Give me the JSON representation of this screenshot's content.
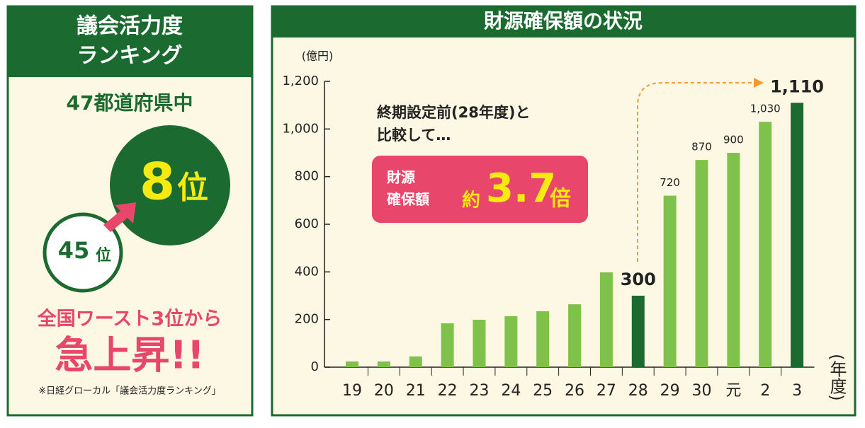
{
  "ranking_panel": {
    "title_lines": [
      "議会活力度",
      "ランキング"
    ],
    "subtitle": "47都道府県中",
    "current_rank": {
      "number": "8",
      "unit": "位"
    },
    "previous_rank": {
      "number": "45",
      "unit": "位"
    },
    "headline": "全国ワースト3位から",
    "headline_big": "急上昇!!",
    "footnote": "※日経グローカル「議会活力度ランキング」"
  },
  "chart_data": {
    "type": "bar",
    "title": "財源確保額の状況",
    "ylabel": "(億円)",
    "xlabel": "(年度)",
    "categories": [
      "19",
      "20",
      "21",
      "22",
      "23",
      "24",
      "25",
      "26",
      "27",
      "28",
      "29",
      "30",
      "元",
      "2",
      "3"
    ],
    "values": [
      24,
      24,
      45,
      184,
      199,
      214,
      235,
      264,
      398,
      300,
      720,
      870,
      900,
      1030,
      1110
    ],
    "value_labels": [
      null,
      null,
      null,
      null,
      null,
      null,
      null,
      null,
      null,
      "300",
      "720",
      "870",
      "900",
      "1,030",
      "1,110"
    ],
    "colors": [
      "#7fc24b",
      "#7fc24b",
      "#7fc24b",
      "#7fc24b",
      "#7fc24b",
      "#7fc24b",
      "#7fc24b",
      "#7fc24b",
      "#7fc24b",
      "#1b6b30",
      "#7fc24b",
      "#7fc24b",
      "#7fc24b",
      "#7fc24b",
      "#1b6b30"
    ],
    "ylim": [
      0,
      1200
    ],
    "yticks": [
      0,
      200,
      400,
      600,
      800,
      {
        "value": 1000,
        "label": "1,000"
      },
      {
        "value": 1200,
        "label": "1,200"
      }
    ],
    "annotation_lines": [
      "終期設定前(28年度)と",
      "比較して…"
    ],
    "badge": {
      "label_lines": [
        "財源",
        "確保額"
      ],
      "prefix": "約",
      "number": "3.7",
      "suffix": "倍"
    }
  }
}
